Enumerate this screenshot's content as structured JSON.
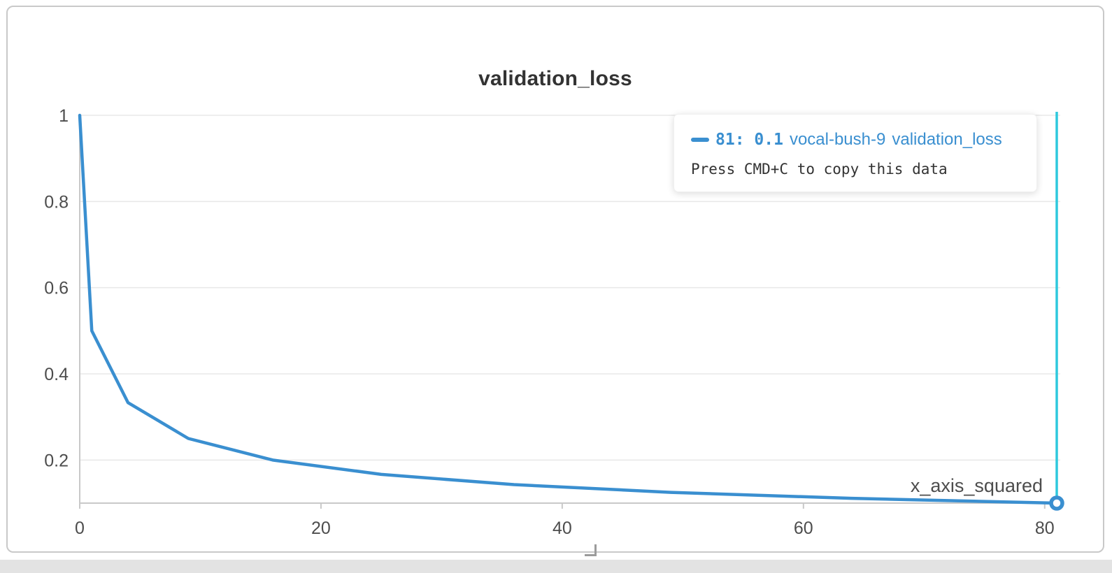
{
  "panel": {
    "title": "validation_loss"
  },
  "chart_data": {
    "type": "line",
    "title": "validation_loss",
    "xlabel": "x_axis_squared",
    "ylabel": "",
    "xlim": [
      0,
      81
    ],
    "ylim": [
      0.1,
      1
    ],
    "x_ticks": [
      0,
      20,
      40,
      60,
      80
    ],
    "y_ticks": [
      1,
      0.8,
      0.6,
      0.4,
      0.2
    ],
    "grid": true,
    "legend_position": "none",
    "series": [
      {
        "name": "vocal-bush-9 validation_loss",
        "color": "#3a8fd0",
        "points": [
          [
            0,
            1
          ],
          [
            1,
            0.5
          ],
          [
            4,
            0.3333
          ],
          [
            9,
            0.25
          ],
          [
            16,
            0.2
          ],
          [
            25,
            0.1667
          ],
          [
            36,
            0.1429
          ],
          [
            49,
            0.125
          ],
          [
            64,
            0.1111
          ],
          [
            81,
            0.1
          ]
        ]
      }
    ],
    "crosshair": {
      "x": 81,
      "color": "#2ec9dd"
    },
    "highlight_point": {
      "x": 81,
      "y": 0.1
    }
  },
  "tooltip": {
    "value": "81: 0.1",
    "run_name": "vocal-bush-9",
    "metric": "validation_loss",
    "hint": "Press CMD+C to copy this data"
  },
  "colors": {
    "accent_blue": "#3a8fd0",
    "crosshair_teal": "#2ec9dd",
    "grid": "#e8e8e8",
    "axis": "#c9c9c9"
  }
}
